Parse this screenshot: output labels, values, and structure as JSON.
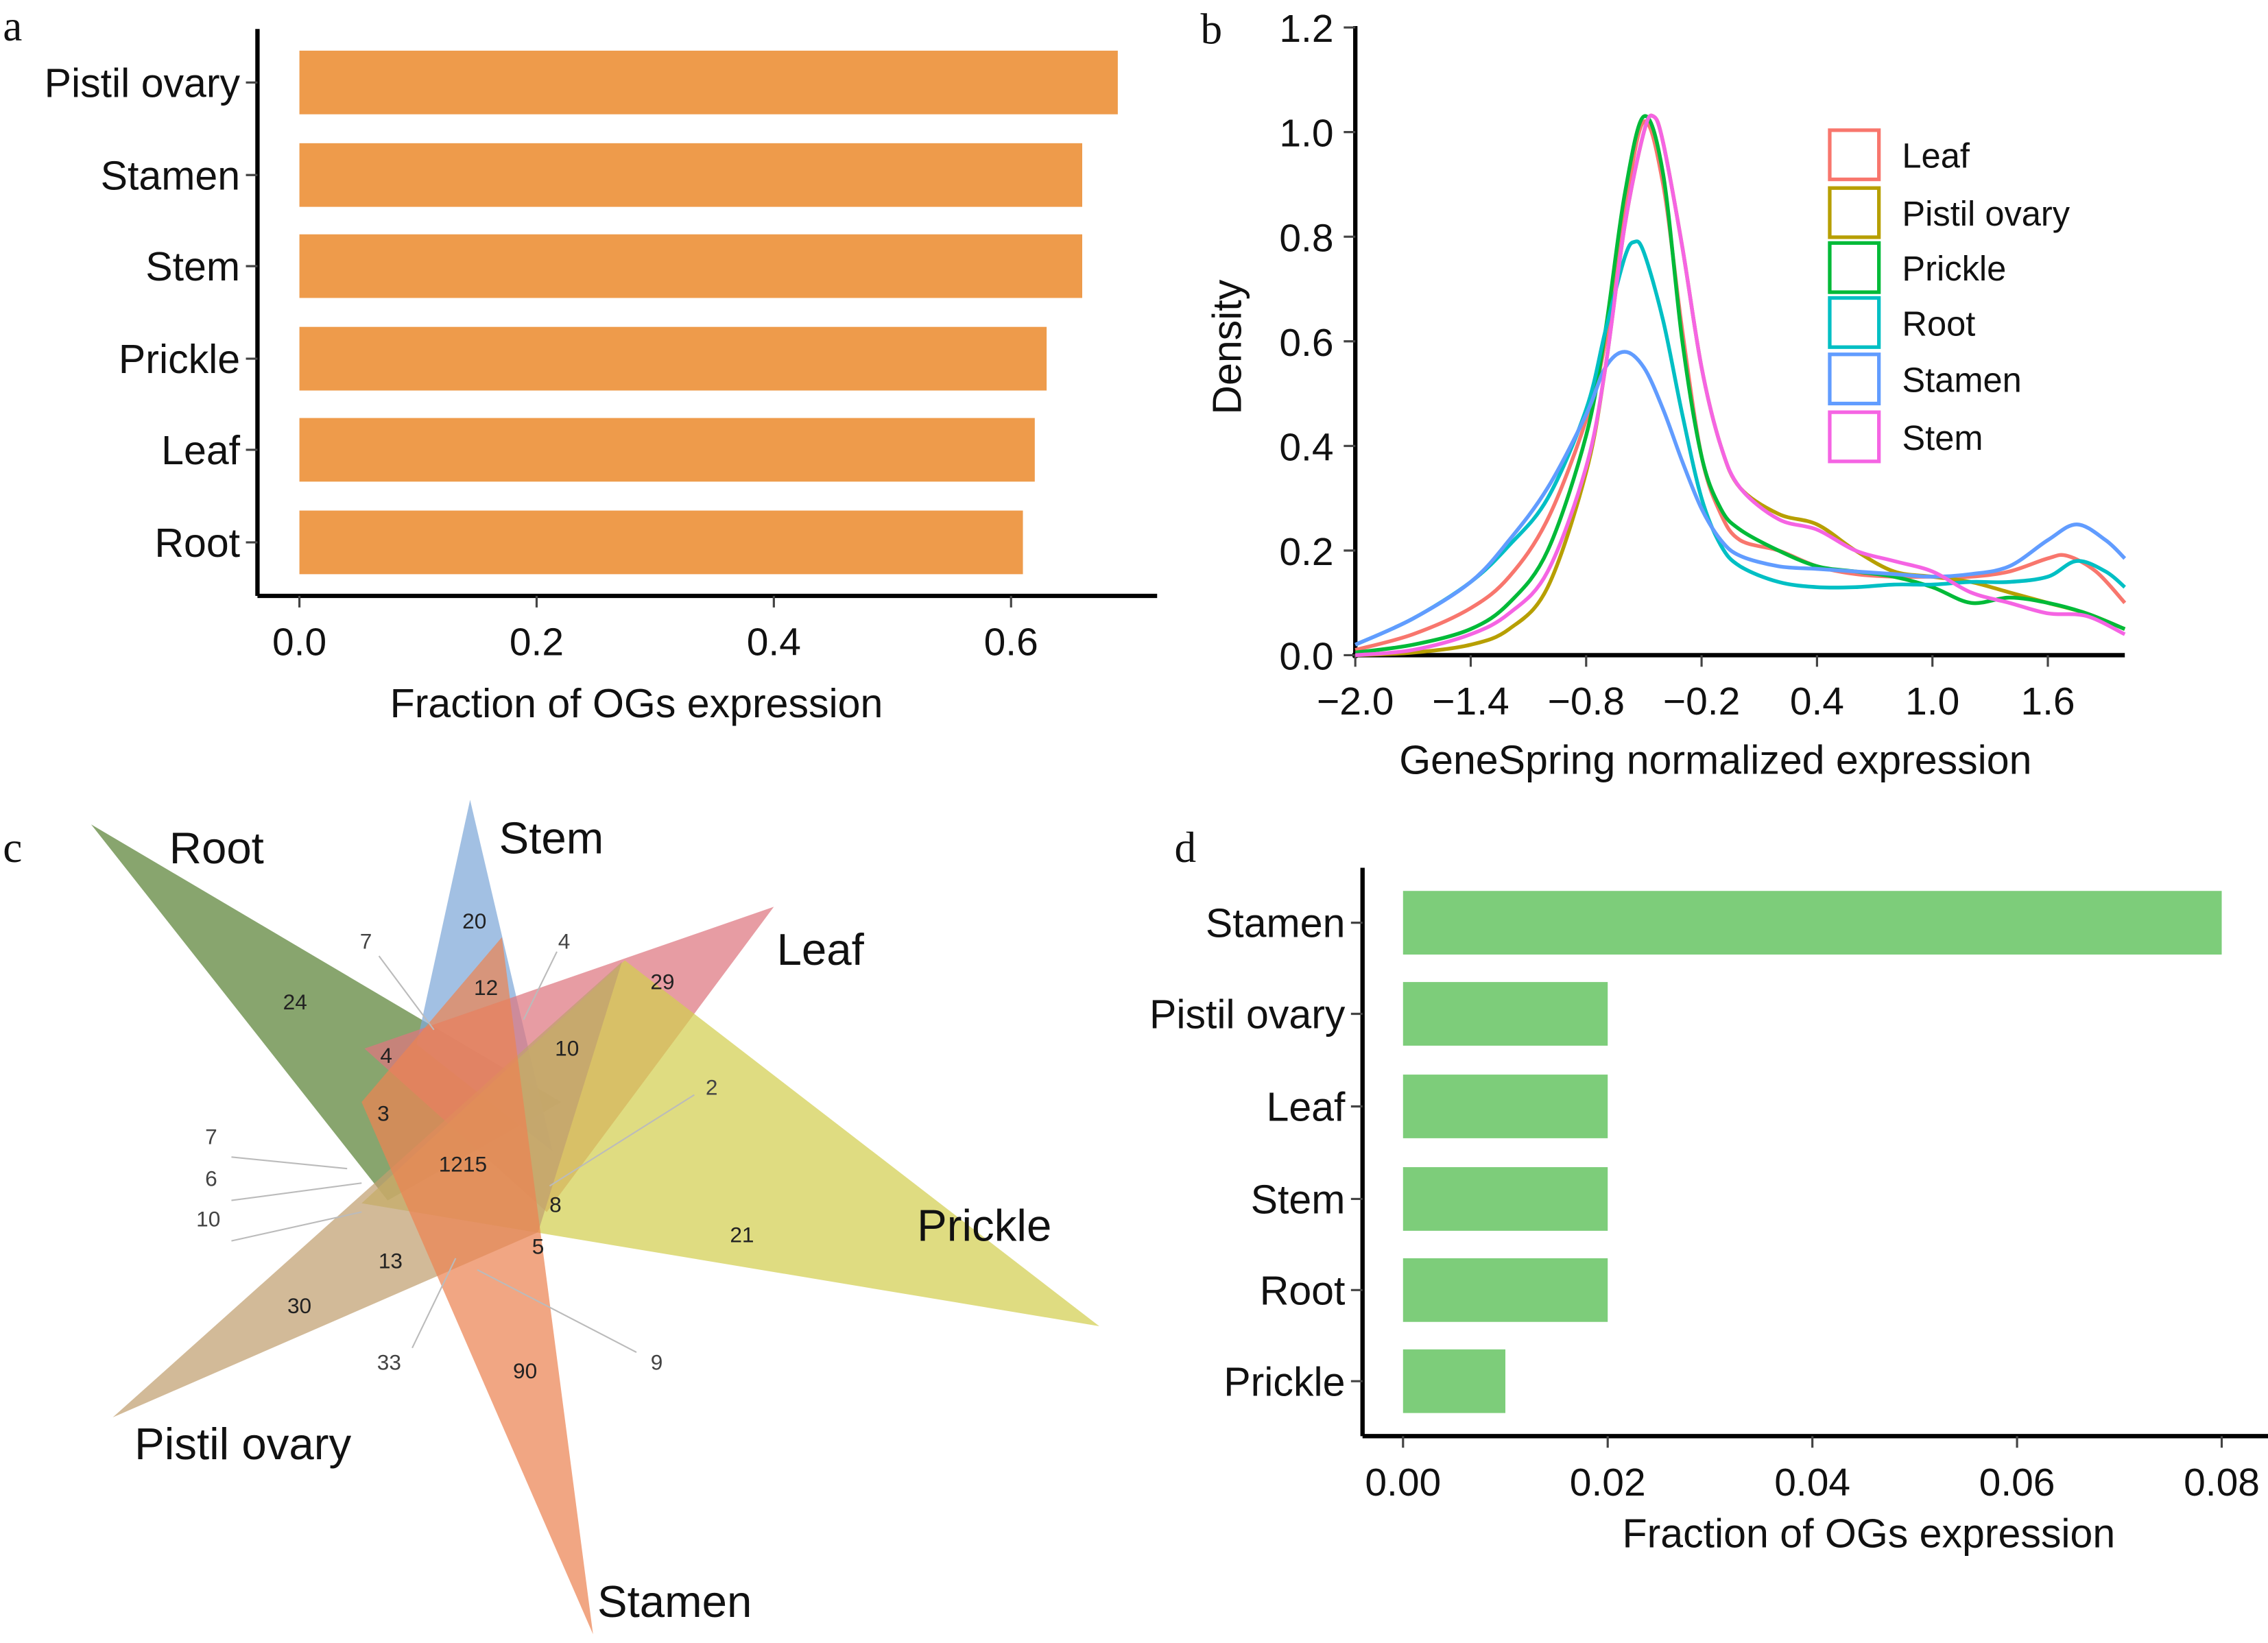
{
  "panel_letters": [
    "a",
    "b",
    "c",
    "d"
  ],
  "chart_data": [
    {
      "panel": "a",
      "type": "bar",
      "orientation": "horizontal",
      "categories": [
        "Pistil ovary",
        "Stamen",
        "Stem",
        "Prickle",
        "Leaf",
        "Root"
      ],
      "values": [
        0.69,
        0.66,
        0.66,
        0.63,
        0.62,
        0.61
      ],
      "xlabel": "Fraction of OGs expression",
      "xticks": [
        "0.0",
        "0.2",
        "0.4",
        "0.6"
      ],
      "xlim": [
        0,
        0.72
      ],
      "color": "#ee9b4b",
      "grid": false
    },
    {
      "panel": "b",
      "type": "line",
      "xlabel": "GeneSpring normalized expression",
      "ylabel": "Density",
      "xticks": [
        "−2.0",
        "−1.4",
        "−0.8",
        "−0.2",
        "0.4",
        "1.0",
        "1.6"
      ],
      "yticks": [
        "0.0",
        "0.2",
        "0.4",
        "0.6",
        "0.8",
        "1.0",
        "1.2"
      ],
      "xlim": [
        -2.0,
        2.0
      ],
      "ylim": [
        0,
        1.2
      ],
      "legend_position": "top-right",
      "grid": false,
      "series": [
        {
          "name": "Leaf",
          "color": "#f8766d",
          "x": [
            -2.0,
            -1.7,
            -1.4,
            -1.2,
            -1.0,
            -0.8,
            -0.7,
            -0.6,
            -0.5,
            -0.4,
            -0.3,
            -0.2,
            -0.1,
            0.0,
            0.2,
            0.4,
            0.6,
            0.8,
            1.0,
            1.2,
            1.4,
            1.6,
            1.7,
            1.85,
            2.0
          ],
          "y": [
            0.01,
            0.04,
            0.09,
            0.15,
            0.26,
            0.45,
            0.6,
            0.85,
            1.02,
            0.9,
            0.62,
            0.38,
            0.27,
            0.22,
            0.2,
            0.17,
            0.155,
            0.15,
            0.15,
            0.15,
            0.16,
            0.185,
            0.19,
            0.16,
            0.1
          ]
        },
        {
          "name": "Pistil ovary",
          "color": "#b79f00",
          "x": [
            -2.0,
            -1.7,
            -1.4,
            -1.2,
            -1.0,
            -0.8,
            -0.7,
            -0.6,
            -0.5,
            -0.45,
            -0.4,
            -0.3,
            -0.2,
            -0.1,
            0.0,
            0.2,
            0.4,
            0.6,
            0.8,
            1.0,
            1.2,
            1.4,
            1.6,
            1.8,
            2.0
          ],
          "y": [
            0.0,
            0.005,
            0.02,
            0.05,
            0.13,
            0.35,
            0.55,
            0.82,
            1.0,
            1.03,
            0.98,
            0.78,
            0.55,
            0.4,
            0.32,
            0.27,
            0.25,
            0.2,
            0.16,
            0.15,
            0.14,
            0.12,
            0.1,
            0.08,
            0.05
          ]
        },
        {
          "name": "Prickle",
          "color": "#00ba38",
          "x": [
            -2.0,
            -1.7,
            -1.4,
            -1.2,
            -1.0,
            -0.8,
            -0.7,
            -0.6,
            -0.5,
            -0.4,
            -0.3,
            -0.2,
            -0.1,
            0.0,
            0.2,
            0.4,
            0.6,
            0.8,
            1.0,
            1.2,
            1.4,
            1.6,
            1.8,
            2.0
          ],
          "y": [
            0.005,
            0.02,
            0.05,
            0.1,
            0.2,
            0.42,
            0.62,
            0.88,
            1.03,
            0.92,
            0.6,
            0.38,
            0.28,
            0.24,
            0.2,
            0.17,
            0.16,
            0.15,
            0.13,
            0.1,
            0.11,
            0.1,
            0.08,
            0.05
          ]
        },
        {
          "name": "Root",
          "color": "#00bfc4",
          "x": [
            -2.0,
            -1.7,
            -1.4,
            -1.2,
            -1.0,
            -0.8,
            -0.7,
            -0.6,
            -0.55,
            -0.5,
            -0.4,
            -0.3,
            -0.2,
            -0.1,
            0.0,
            0.2,
            0.4,
            0.6,
            0.8,
            1.0,
            1.2,
            1.4,
            1.6,
            1.75,
            1.9,
            2.0
          ],
          "y": [
            0.02,
            0.07,
            0.14,
            0.21,
            0.3,
            0.47,
            0.62,
            0.76,
            0.79,
            0.77,
            0.64,
            0.46,
            0.3,
            0.21,
            0.17,
            0.14,
            0.13,
            0.13,
            0.135,
            0.135,
            0.14,
            0.14,
            0.15,
            0.18,
            0.16,
            0.13
          ]
        },
        {
          "name": "Stamen",
          "color": "#619cff",
          "x": [
            -2.0,
            -1.7,
            -1.4,
            -1.2,
            -1.0,
            -0.8,
            -0.7,
            -0.6,
            -0.5,
            -0.4,
            -0.3,
            -0.2,
            -0.1,
            0.0,
            0.2,
            0.4,
            0.6,
            0.8,
            1.0,
            1.2,
            1.4,
            1.6,
            1.75,
            1.9,
            2.0
          ],
          "y": [
            0.02,
            0.07,
            0.14,
            0.22,
            0.32,
            0.46,
            0.55,
            0.58,
            0.55,
            0.47,
            0.37,
            0.28,
            0.22,
            0.19,
            0.17,
            0.165,
            0.16,
            0.155,
            0.15,
            0.155,
            0.17,
            0.22,
            0.25,
            0.22,
            0.185
          ]
        },
        {
          "name": "Stem",
          "color": "#f564e3",
          "x": [
            -2.0,
            -1.7,
            -1.4,
            -1.2,
            -1.0,
            -0.8,
            -0.7,
            -0.6,
            -0.5,
            -0.45,
            -0.4,
            -0.3,
            -0.2,
            -0.1,
            0.0,
            0.2,
            0.4,
            0.6,
            0.8,
            1.0,
            1.2,
            1.4,
            1.6,
            1.8,
            2.0
          ],
          "y": [
            0.0,
            0.01,
            0.04,
            0.08,
            0.16,
            0.36,
            0.55,
            0.82,
            1.0,
            1.03,
            0.98,
            0.78,
            0.55,
            0.4,
            0.32,
            0.26,
            0.24,
            0.2,
            0.18,
            0.16,
            0.12,
            0.1,
            0.08,
            0.075,
            0.04
          ]
        }
      ]
    },
    {
      "panel": "c",
      "type": "venn",
      "sets": [
        {
          "name": "Root",
          "color": "#5a8236"
        },
        {
          "name": "Stem",
          "color": "#7ea8d8"
        },
        {
          "name": "Leaf",
          "color": "#de7680"
        },
        {
          "name": "Prickle",
          "color": "#d2cf50"
        },
        {
          "name": "Pistil ovary",
          "color": "#c0a070"
        },
        {
          "name": "Stamen",
          "color": "#ec8453"
        }
      ],
      "region_counts": [
        "24",
        "20",
        "29",
        "21",
        "30",
        "90",
        "12",
        "10",
        "4",
        "3",
        "1215",
        "8",
        "5",
        "13",
        "7",
        "4",
        "2",
        "7",
        "6",
        "10",
        "33",
        "9"
      ]
    },
    {
      "panel": "d",
      "type": "bar",
      "orientation": "horizontal",
      "categories": [
        "Stamen",
        "Pistil ovary",
        "Leaf",
        "Stem",
        "Root",
        "Prickle"
      ],
      "values": [
        0.08,
        0.02,
        0.02,
        0.02,
        0.02,
        0.01
      ],
      "xlabel": "Fraction of OGs expression",
      "xticks": [
        "0.00",
        "0.02",
        "0.04",
        "0.06",
        "0.08"
      ],
      "xlim": [
        0,
        0.084
      ],
      "color": "#7dcd7a",
      "grid": false
    }
  ]
}
